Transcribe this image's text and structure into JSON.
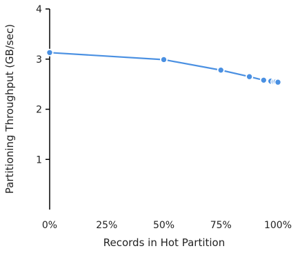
{
  "chart_data": {
    "type": "line",
    "title": "",
    "xlabel": "Records in Hot Partition",
    "ylabel": "Partitioning Throughput (GB/sec)",
    "x_ticks": [
      "0%",
      "25%",
      "50%",
      "75%",
      "100%"
    ],
    "y_ticks": [
      "1",
      "2",
      "3",
      "4"
    ],
    "xlim": [
      0,
      100
    ],
    "ylim": [
      0,
      4
    ],
    "grid": false,
    "legend": "none",
    "series": [
      {
        "color": "#4a90e2",
        "points": [
          {
            "x": 0,
            "y": 3.13
          },
          {
            "x": 50,
            "y": 2.99
          },
          {
            "x": 75,
            "y": 2.78
          },
          {
            "x": 87.5,
            "y": 2.65
          },
          {
            "x": 93.75,
            "y": 2.58
          },
          {
            "x": 96.9,
            "y": 2.56
          },
          {
            "x": 98.4,
            "y": 2.55
          },
          {
            "x": 99.2,
            "y": 2.55
          },
          {
            "x": 100,
            "y": 2.54
          }
        ]
      }
    ]
  }
}
